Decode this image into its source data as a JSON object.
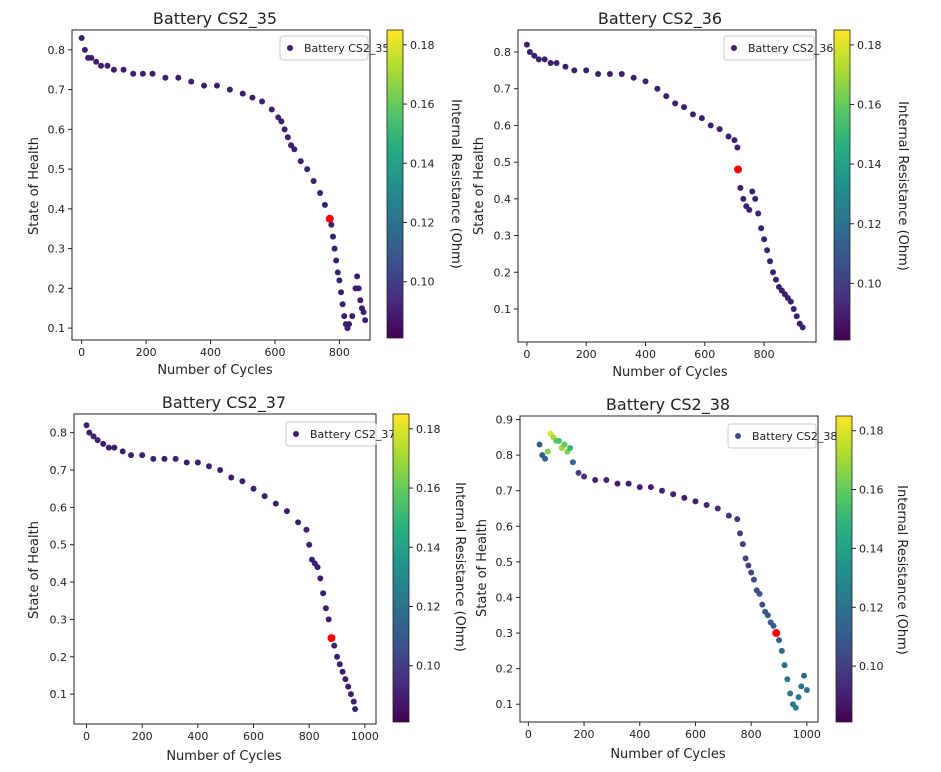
{
  "chart_data": [
    {
      "type": "scatter",
      "title": "Battery CS2_35",
      "xlabel": "Number of Cycles",
      "ylabel": "State of Health",
      "colorbar_label": "Internal Resistance (Ohm)",
      "legend": "Battery CS2_35",
      "legend_position": "top-right",
      "xlim": [
        -30,
        895
      ],
      "ylim": [
        0.07,
        0.85
      ],
      "xticks": [
        0,
        200,
        400,
        600,
        800
      ],
      "yticks": [
        0.1,
        0.2,
        0.3,
        0.4,
        0.5,
        0.6,
        0.7,
        0.8
      ],
      "ytick_labels": [
        "0.1",
        "0.2",
        "0.3",
        "0.4",
        "0.5",
        "0.6",
        "0.7",
        "0.8"
      ],
      "cbar_range": [
        0.081,
        0.185
      ],
      "cbar_ticks": [
        0.1,
        0.12,
        0.14,
        0.16,
        0.18
      ],
      "cbar_tick_labels": [
        "0.10",
        "0.12",
        "0.14",
        "0.16",
        "0.18"
      ],
      "marker_color": "#3c1f6e",
      "highlight": {
        "x": 770,
        "y": 0.375,
        "color": "#ff0000"
      },
      "x": [
        0,
        10,
        20,
        30,
        45,
        60,
        80,
        100,
        130,
        160,
        190,
        220,
        260,
        300,
        340,
        380,
        420,
        460,
        500,
        530,
        560,
        590,
        610,
        620,
        630,
        640,
        650,
        660,
        680,
        700,
        720,
        740,
        755,
        770,
        775,
        780,
        785,
        790,
        795,
        800,
        805,
        810,
        815,
        820,
        825,
        830,
        840,
        850,
        855,
        860,
        865,
        870,
        875,
        880
      ],
      "y": [
        0.83,
        0.8,
        0.78,
        0.78,
        0.77,
        0.76,
        0.76,
        0.75,
        0.75,
        0.74,
        0.74,
        0.74,
        0.73,
        0.73,
        0.72,
        0.71,
        0.71,
        0.7,
        0.69,
        0.68,
        0.67,
        0.65,
        0.63,
        0.62,
        0.6,
        0.58,
        0.56,
        0.55,
        0.52,
        0.5,
        0.47,
        0.44,
        0.41,
        0.375,
        0.36,
        0.33,
        0.3,
        0.27,
        0.24,
        0.22,
        0.19,
        0.16,
        0.13,
        0.11,
        0.1,
        0.11,
        0.13,
        0.2,
        0.23,
        0.2,
        0.17,
        0.15,
        0.14,
        0.12
      ]
    },
    {
      "type": "scatter",
      "title": "Battery CS2_36",
      "xlabel": "Number of Cycles",
      "ylabel": "State of Health",
      "colorbar_label": "Internal Resistance (Ohm)",
      "legend": "Battery CS2_36",
      "legend_position": "top-right",
      "xlim": [
        -30,
        975
      ],
      "ylim": [
        0.01,
        0.86
      ],
      "xticks": [
        0,
        200,
        400,
        600,
        800
      ],
      "yticks": [
        0.1,
        0.2,
        0.3,
        0.4,
        0.5,
        0.6,
        0.7,
        0.8
      ],
      "ytick_labels": [
        "0.1",
        "0.2",
        "0.3",
        "0.4",
        "0.5",
        "0.6",
        "0.7",
        "0.8"
      ],
      "cbar_range": [
        0.081,
        0.185
      ],
      "cbar_ticks": [
        0.1,
        0.12,
        0.14,
        0.16,
        0.18
      ],
      "cbar_tick_labels": [
        "0.10",
        "0.12",
        "0.14",
        "0.16",
        "0.18"
      ],
      "marker_color": "#3c1f6e",
      "highlight": {
        "x": 712,
        "y": 0.48,
        "color": "#ff0000"
      },
      "x": [
        0,
        10,
        25,
        40,
        60,
        80,
        100,
        130,
        160,
        200,
        240,
        280,
        320,
        360,
        400,
        440,
        470,
        500,
        530,
        560,
        590,
        620,
        650,
        680,
        700,
        710,
        712,
        720,
        730,
        740,
        750,
        760,
        770,
        780,
        790,
        800,
        810,
        820,
        830,
        840,
        850,
        860,
        870,
        880,
        890,
        900,
        910,
        920,
        930
      ],
      "y": [
        0.82,
        0.8,
        0.79,
        0.78,
        0.78,
        0.77,
        0.77,
        0.76,
        0.75,
        0.75,
        0.74,
        0.74,
        0.74,
        0.73,
        0.72,
        0.7,
        0.68,
        0.66,
        0.65,
        0.63,
        0.62,
        0.6,
        0.59,
        0.57,
        0.56,
        0.54,
        0.48,
        0.43,
        0.4,
        0.38,
        0.37,
        0.42,
        0.4,
        0.36,
        0.32,
        0.29,
        0.26,
        0.23,
        0.2,
        0.18,
        0.16,
        0.15,
        0.14,
        0.13,
        0.12,
        0.1,
        0.08,
        0.06,
        0.05
      ]
    },
    {
      "type": "scatter",
      "title": "Battery CS2_37",
      "xlabel": "Number of Cycles",
      "ylabel": "State of Health",
      "colorbar_label": "Internal Resistance (Ohm)",
      "legend": "Battery CS2_37",
      "legend_position": "top-right",
      "xlim": [
        -45,
        1040
      ],
      "ylim": [
        0.02,
        0.85
      ],
      "xticks": [
        0,
        200,
        400,
        600,
        800,
        1000
      ],
      "yticks": [
        0.1,
        0.2,
        0.3,
        0.4,
        0.5,
        0.6,
        0.7,
        0.8
      ],
      "ytick_labels": [
        "0.1",
        "0.2",
        "0.3",
        "0.4",
        "0.5",
        "0.6",
        "0.7",
        "0.8"
      ],
      "cbar_range": [
        0.081,
        0.185
      ],
      "cbar_ticks": [
        0.1,
        0.12,
        0.14,
        0.16,
        0.18
      ],
      "cbar_tick_labels": [
        "0.10",
        "0.12",
        "0.14",
        "0.16",
        "0.18"
      ],
      "marker_color": "#3c1f6e",
      "highlight": {
        "x": 880,
        "y": 0.25,
        "color": "#ff0000"
      },
      "x": [
        0,
        10,
        25,
        40,
        60,
        80,
        100,
        130,
        160,
        200,
        240,
        280,
        320,
        360,
        400,
        440,
        480,
        520,
        560,
        600,
        640,
        680,
        720,
        760,
        790,
        800,
        810,
        820,
        830,
        840,
        850,
        860,
        870,
        880,
        890,
        900,
        910,
        920,
        930,
        940,
        950,
        960,
        965
      ],
      "y": [
        0.82,
        0.8,
        0.79,
        0.78,
        0.77,
        0.76,
        0.76,
        0.75,
        0.74,
        0.74,
        0.73,
        0.73,
        0.73,
        0.72,
        0.72,
        0.71,
        0.7,
        0.68,
        0.67,
        0.65,
        0.63,
        0.61,
        0.59,
        0.56,
        0.54,
        0.5,
        0.46,
        0.45,
        0.44,
        0.41,
        0.37,
        0.33,
        0.3,
        0.25,
        0.23,
        0.2,
        0.18,
        0.16,
        0.14,
        0.12,
        0.1,
        0.08,
        0.06
      ]
    },
    {
      "type": "scatter",
      "title": "Battery CS2_38",
      "xlabel": "Number of Cycles",
      "ylabel": "State of Health",
      "colorbar_label": "Internal Resistance (Ohm)",
      "legend": "Battery CS2_38",
      "legend_position": "top-right",
      "xlim": [
        -30,
        1040
      ],
      "ylim": [
        0.05,
        0.91
      ],
      "xticks": [
        0,
        200,
        400,
        600,
        800,
        1000
      ],
      "yticks": [
        0.1,
        0.2,
        0.3,
        0.4,
        0.5,
        0.6,
        0.7,
        0.8,
        0.9
      ],
      "ytick_labels": [
        "0.1",
        "0.2",
        "0.3",
        "0.4",
        "0.5",
        "0.6",
        "0.7",
        "0.8",
        "0.9"
      ],
      "cbar_range": [
        0.081,
        0.185
      ],
      "cbar_ticks": [
        0.1,
        0.12,
        0.14,
        0.16,
        0.18
      ],
      "cbar_tick_labels": [
        "0.10",
        "0.12",
        "0.14",
        "0.16",
        "0.18"
      ],
      "marker_color": "#3c1f6e",
      "highlight": {
        "x": 890,
        "y": 0.3,
        "color": "#ff0000"
      },
      "x": [
        40,
        50,
        60,
        70,
        80,
        90,
        100,
        110,
        120,
        130,
        140,
        150,
        160,
        180,
        200,
        240,
        280,
        320,
        360,
        400,
        440,
        480,
        520,
        560,
        600,
        640,
        680,
        720,
        750,
        760,
        770,
        780,
        790,
        800,
        810,
        820,
        830,
        840,
        850,
        860,
        870,
        880,
        890,
        900,
        910,
        920,
        930,
        940,
        950,
        960,
        970,
        980,
        990,
        1000
      ],
      "y": [
        0.83,
        0.8,
        0.79,
        0.81,
        0.86,
        0.85,
        0.84,
        0.84,
        0.82,
        0.83,
        0.81,
        0.82,
        0.78,
        0.75,
        0.74,
        0.73,
        0.73,
        0.72,
        0.72,
        0.71,
        0.71,
        0.7,
        0.69,
        0.68,
        0.67,
        0.66,
        0.65,
        0.63,
        0.62,
        0.58,
        0.55,
        0.51,
        0.49,
        0.47,
        0.45,
        0.42,
        0.41,
        0.38,
        0.36,
        0.35,
        0.33,
        0.32,
        0.3,
        0.28,
        0.25,
        0.21,
        0.17,
        0.13,
        0.1,
        0.09,
        0.12,
        0.15,
        0.18,
        0.14
      ],
      "ir": [
        0.112,
        0.11,
        0.112,
        0.165,
        0.18,
        0.17,
        0.16,
        0.155,
        0.17,
        0.16,
        0.165,
        0.15,
        0.115,
        0.1,
        0.094,
        0.09,
        0.09,
        0.09,
        0.09,
        0.09,
        0.09,
        0.09,
        0.09,
        0.09,
        0.09,
        0.092,
        0.094,
        0.096,
        0.098,
        0.1,
        0.1,
        0.102,
        0.102,
        0.104,
        0.105,
        0.106,
        0.108,
        0.108,
        0.11,
        0.11,
        0.112,
        0.112,
        0.113,
        0.114,
        0.115,
        0.117,
        0.12,
        0.122,
        0.125,
        0.126,
        0.124,
        0.12,
        0.118,
        0.12
      ]
    }
  ]
}
